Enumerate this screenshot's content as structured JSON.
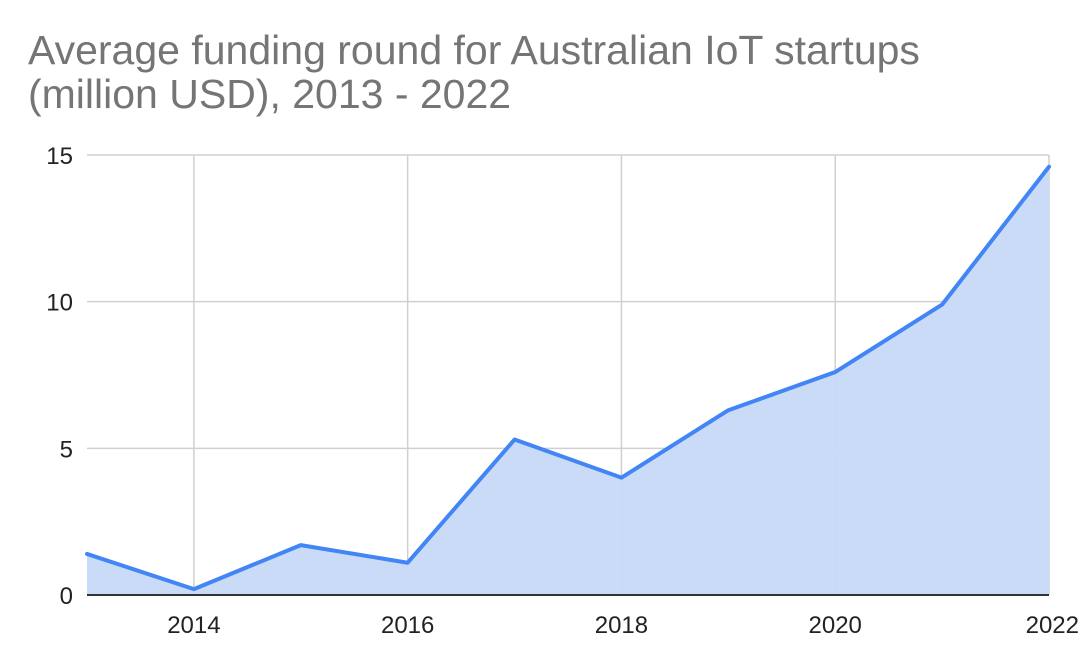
{
  "chart_data": {
    "type": "area",
    "title_lines": [
      "Average funding round for Australian IoT startups",
      "(million USD), 2013 - 2022"
    ],
    "x": [
      2013,
      2014,
      2015,
      2016,
      2017,
      2018,
      2019,
      2020,
      2021,
      2022
    ],
    "series": [
      {
        "values": [
          1.4,
          0.2,
          1.7,
          1.1,
          5.3,
          4.0,
          6.3,
          7.6,
          9.9,
          14.6
        ]
      }
    ],
    "xlim": [
      2013,
      2022
    ],
    "ylim": [
      0,
      15
    ],
    "x_ticks": [
      "2014",
      "2016",
      "2018",
      "2020",
      "2022"
    ],
    "y_ticks": [
      "0",
      "5",
      "10",
      "15"
    ],
    "xlabel": "",
    "ylabel": "",
    "grid": true,
    "legend": "none",
    "colors": {
      "line": "#4285f4",
      "fill": "#c6d9f7",
      "grid": "#d0d0d0",
      "axis": "#333333",
      "title": "#757575"
    }
  }
}
